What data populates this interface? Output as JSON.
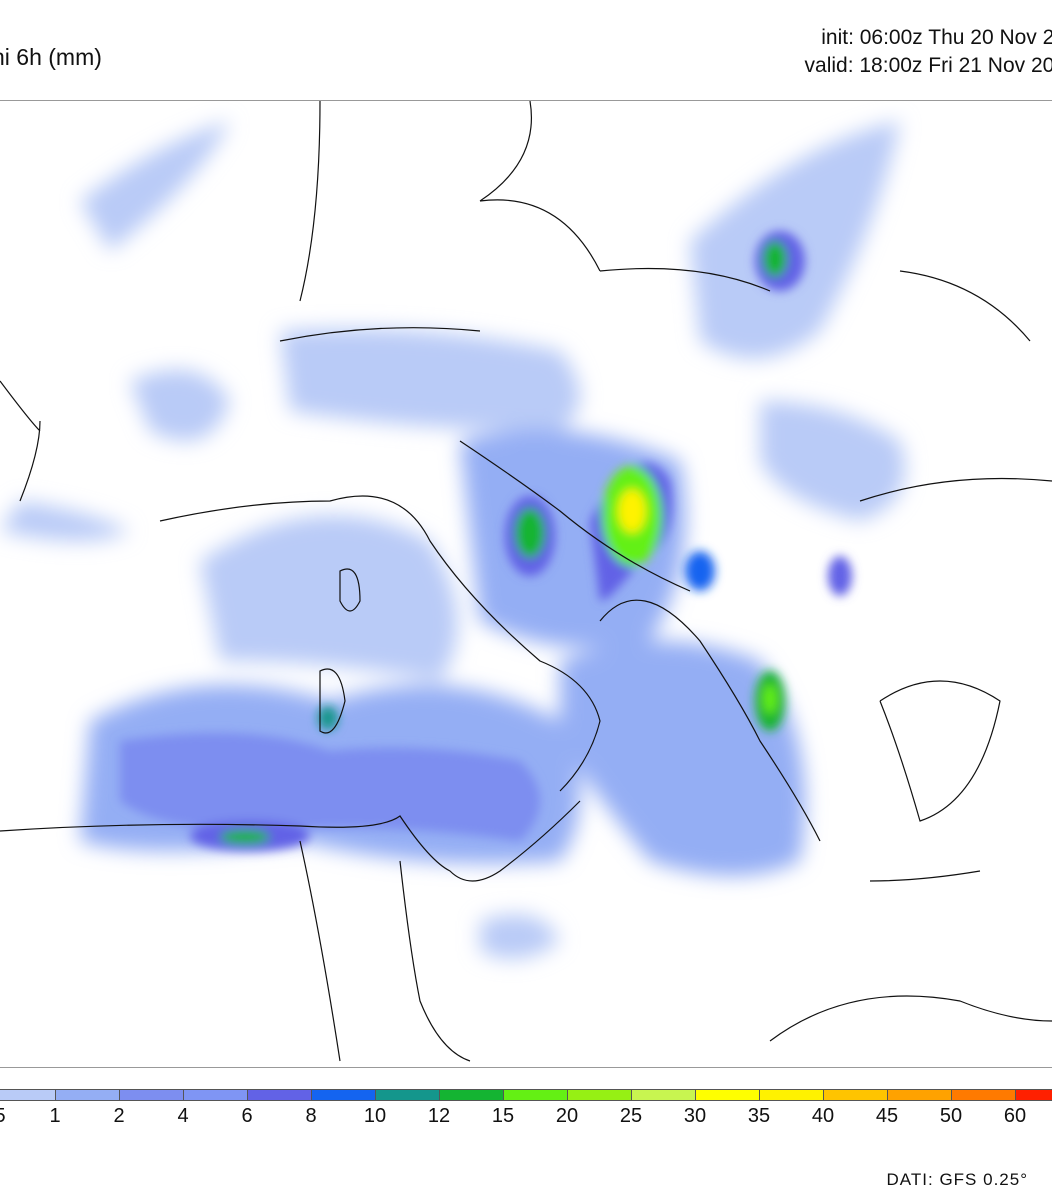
{
  "header": {
    "title": "ni 6h (mm)",
    "init": "init: 06:00z Thu 20 Nov 20",
    "valid": "valid: 18:00z Fri 21 Nov 202"
  },
  "legend": {
    "labels": [
      "5",
      "1",
      "2",
      "4",
      "6",
      "8",
      "10",
      "12",
      "15",
      "20",
      "25",
      "30",
      "35",
      "40",
      "45",
      "50",
      "60"
    ],
    "colors": [
      "#b9cbf7",
      "#94aef4",
      "#7d8ef0",
      "#7f95f4",
      "#6262e6",
      "#1464f0",
      "#14968c",
      "#14b432",
      "#64f014",
      "#96f014",
      "#c8f550",
      "#ffff00",
      "#fff200",
      "#ffc400",
      "#ffa200",
      "#ff7a00",
      "#ff2000"
    ]
  },
  "source": "DATI: GFS 0.25°"
}
